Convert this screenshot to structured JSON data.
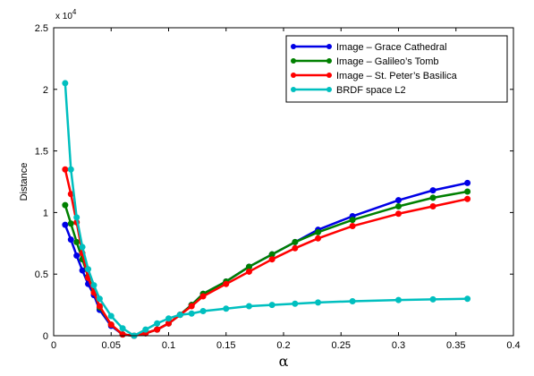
{
  "chart_data": {
    "type": "line",
    "xlabel": "α",
    "ylabel": "Distance",
    "y_multiplier_label": "x 10",
    "y_multiplier_exponent": "4",
    "xlim": [
      0,
      0.4
    ],
    "ylim": [
      0,
      2.5
    ],
    "x_ticks": [
      "0",
      "0.05",
      "0.1",
      "0.15",
      "0.2",
      "0.25",
      "0.3",
      "0.35",
      "0.4"
    ],
    "y_ticks": [
      "0",
      "0.5",
      "1",
      "1.5",
      "2",
      "2.5"
    ],
    "grid": false,
    "legend_position": "top-right",
    "colors": {
      "Image – Grace Cathedral": "#0000e6",
      "Image – Galileo’s Tomb": "#008000",
      "Image – St. Peter’s Basilica": "#ff0000",
      "BRDF space L2": "#00bfbf"
    },
    "series": [
      {
        "name": "Image – Grace Cathedral",
        "x": [
          0.01,
          0.015,
          0.02,
          0.025,
          0.03,
          0.035,
          0.04,
          0.05,
          0.06,
          0.07,
          0.08,
          0.09,
          0.1,
          0.11,
          0.12,
          0.13,
          0.15,
          0.17,
          0.19,
          0.21,
          0.23,
          0.26,
          0.3,
          0.33,
          0.36
        ],
        "y": [
          0.9,
          0.78,
          0.65,
          0.53,
          0.42,
          0.33,
          0.21,
          0.08,
          0.01,
          0.0,
          0.02,
          0.05,
          0.1,
          0.17,
          0.25,
          0.34,
          0.44,
          0.56,
          0.66,
          0.76,
          0.86,
          0.97,
          1.1,
          1.18,
          1.24
        ]
      },
      {
        "name": "Image – Galileo’s Tomb",
        "x": [
          0.01,
          0.015,
          0.02,
          0.025,
          0.03,
          0.035,
          0.04,
          0.05,
          0.06,
          0.07,
          0.08,
          0.09,
          0.1,
          0.11,
          0.12,
          0.13,
          0.15,
          0.17,
          0.19,
          0.21,
          0.23,
          0.26,
          0.3,
          0.33,
          0.36
        ],
        "y": [
          1.06,
          0.91,
          0.76,
          0.62,
          0.48,
          0.36,
          0.23,
          0.09,
          0.01,
          0.0,
          0.02,
          0.05,
          0.1,
          0.17,
          0.25,
          0.34,
          0.44,
          0.56,
          0.66,
          0.76,
          0.84,
          0.94,
          1.05,
          1.12,
          1.17
        ]
      },
      {
        "name": "Image – St. Peter’s Basilica",
        "x": [
          0.01,
          0.015,
          0.02,
          0.025,
          0.03,
          0.035,
          0.04,
          0.05,
          0.06,
          0.07,
          0.08,
          0.09,
          0.1,
          0.11,
          0.12,
          0.13,
          0.15,
          0.17,
          0.19,
          0.21,
          0.23,
          0.26,
          0.3,
          0.33,
          0.36
        ],
        "y": [
          1.35,
          1.15,
          0.92,
          0.67,
          0.47,
          0.35,
          0.24,
          0.09,
          0.01,
          0.0,
          0.02,
          0.05,
          0.1,
          0.17,
          0.24,
          0.32,
          0.42,
          0.52,
          0.62,
          0.71,
          0.79,
          0.89,
          0.99,
          1.05,
          1.11
        ]
      },
      {
        "name": "BRDF space L2",
        "x": [
          0.01,
          0.015,
          0.02,
          0.025,
          0.03,
          0.035,
          0.04,
          0.05,
          0.06,
          0.07,
          0.08,
          0.09,
          0.1,
          0.11,
          0.12,
          0.13,
          0.15,
          0.17,
          0.19,
          0.21,
          0.23,
          0.26,
          0.3,
          0.33,
          0.36
        ],
        "y": [
          2.05,
          1.35,
          0.96,
          0.72,
          0.54,
          0.41,
          0.3,
          0.16,
          0.06,
          0.0,
          0.05,
          0.1,
          0.14,
          0.17,
          0.18,
          0.2,
          0.22,
          0.24,
          0.25,
          0.26,
          0.27,
          0.28,
          0.29,
          0.295,
          0.3
        ]
      }
    ]
  }
}
